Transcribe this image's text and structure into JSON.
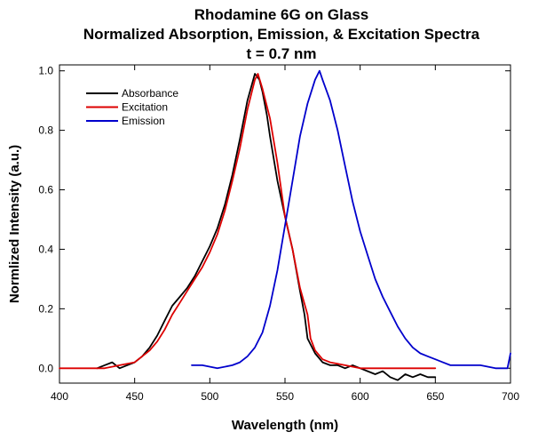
{
  "chart_data": {
    "type": "line",
    "title_lines": [
      "Rhodamine 6G on Glass",
      "Normalized Absorption, Emission, & Excitation Spectra",
      "t = 0.7 nm"
    ],
    "xlabel": "Wavelength (nm)",
    "ylabel": "Normlized Intensity (a.u.)",
    "xlim": [
      400,
      700
    ],
    "ylim": [
      -0.05,
      1.02
    ],
    "xticks": [
      400,
      450,
      500,
      550,
      600,
      650,
      700
    ],
    "yticks": [
      0.0,
      0.2,
      0.4,
      0.6,
      0.8,
      1.0
    ],
    "xtick_labels": [
      "400",
      "450",
      "500",
      "550",
      "600",
      "650",
      "700"
    ],
    "ytick_labels": [
      "0.0",
      "0.2",
      "0.4",
      "0.6",
      "0.8",
      "1.0"
    ],
    "grid": false,
    "legend_position": "top-left",
    "series": [
      {
        "name": "Absorbance",
        "color": "#000000",
        "points": [
          [
            425,
            0.0
          ],
          [
            430,
            0.01
          ],
          [
            435,
            0.02
          ],
          [
            440,
            0.0
          ],
          [
            445,
            0.01
          ],
          [
            450,
            0.02
          ],
          [
            455,
            0.04
          ],
          [
            460,
            0.07
          ],
          [
            465,
            0.11
          ],
          [
            470,
            0.16
          ],
          [
            475,
            0.21
          ],
          [
            480,
            0.24
          ],
          [
            485,
            0.27
          ],
          [
            490,
            0.31
          ],
          [
            495,
            0.36
          ],
          [
            500,
            0.41
          ],
          [
            505,
            0.47
          ],
          [
            510,
            0.55
          ],
          [
            515,
            0.65
          ],
          [
            520,
            0.77
          ],
          [
            525,
            0.9
          ],
          [
            530,
            0.99
          ],
          [
            533,
            0.97
          ],
          [
            535,
            0.93
          ],
          [
            538,
            0.85
          ],
          [
            540,
            0.78
          ],
          [
            545,
            0.63
          ],
          [
            550,
            0.51
          ],
          [
            555,
            0.4
          ],
          [
            560,
            0.26
          ],
          [
            563,
            0.18
          ],
          [
            565,
            0.1
          ],
          [
            570,
            0.05
          ],
          [
            575,
            0.02
          ],
          [
            580,
            0.01
          ],
          [
            585,
            0.01
          ],
          [
            590,
            0.0
          ],
          [
            595,
            0.01
          ],
          [
            600,
            0.0
          ],
          [
            605,
            -0.01
          ],
          [
            610,
            -0.02
          ],
          [
            615,
            -0.01
          ],
          [
            620,
            -0.03
          ],
          [
            625,
            -0.04
          ],
          [
            630,
            -0.02
          ],
          [
            635,
            -0.03
          ],
          [
            640,
            -0.02
          ],
          [
            645,
            -0.03
          ],
          [
            650,
            -0.03
          ]
        ]
      },
      {
        "name": "Excitation",
        "color": "#dd0000",
        "points": [
          [
            400,
            0.0
          ],
          [
            410,
            0.0
          ],
          [
            420,
            0.0
          ],
          [
            430,
            0.0
          ],
          [
            440,
            0.01
          ],
          [
            450,
            0.02
          ],
          [
            455,
            0.04
          ],
          [
            460,
            0.06
          ],
          [
            465,
            0.09
          ],
          [
            470,
            0.13
          ],
          [
            475,
            0.18
          ],
          [
            480,
            0.22
          ],
          [
            485,
            0.26
          ],
          [
            490,
            0.3
          ],
          [
            495,
            0.34
          ],
          [
            500,
            0.39
          ],
          [
            505,
            0.45
          ],
          [
            510,
            0.53
          ],
          [
            515,
            0.63
          ],
          [
            520,
            0.74
          ],
          [
            525,
            0.87
          ],
          [
            530,
            0.97
          ],
          [
            532,
            0.99
          ],
          [
            535,
            0.94
          ],
          [
            540,
            0.84
          ],
          [
            545,
            0.69
          ],
          [
            550,
            0.51
          ],
          [
            555,
            0.4
          ],
          [
            560,
            0.27
          ],
          [
            565,
            0.18
          ],
          [
            567,
            0.1
          ],
          [
            570,
            0.06
          ],
          [
            575,
            0.03
          ],
          [
            580,
            0.02
          ],
          [
            590,
            0.01
          ],
          [
            600,
            0.0
          ],
          [
            610,
            0.0
          ],
          [
            620,
            0.0
          ],
          [
            630,
            0.0
          ],
          [
            640,
            0.0
          ],
          [
            650,
            0.0
          ]
        ]
      },
      {
        "name": "Emission",
        "color": "#0000cc",
        "points": [
          [
            488,
            0.01
          ],
          [
            495,
            0.01
          ],
          [
            505,
            0.0
          ],
          [
            515,
            0.01
          ],
          [
            520,
            0.02
          ],
          [
            525,
            0.04
          ],
          [
            530,
            0.07
          ],
          [
            535,
            0.12
          ],
          [
            540,
            0.21
          ],
          [
            545,
            0.33
          ],
          [
            550,
            0.48
          ],
          [
            555,
            0.63
          ],
          [
            560,
            0.78
          ],
          [
            565,
            0.89
          ],
          [
            570,
            0.97
          ],
          [
            573,
            1.0
          ],
          [
            575,
            0.97
          ],
          [
            580,
            0.9
          ],
          [
            585,
            0.8
          ],
          [
            590,
            0.68
          ],
          [
            595,
            0.56
          ],
          [
            600,
            0.46
          ],
          [
            605,
            0.38
          ],
          [
            610,
            0.3
          ],
          [
            615,
            0.24
          ],
          [
            620,
            0.19
          ],
          [
            625,
            0.14
          ],
          [
            630,
            0.1
          ],
          [
            635,
            0.07
          ],
          [
            640,
            0.05
          ],
          [
            645,
            0.04
          ],
          [
            650,
            0.03
          ],
          [
            655,
            0.02
          ],
          [
            660,
            0.01
          ],
          [
            670,
            0.01
          ],
          [
            680,
            0.01
          ],
          [
            690,
            0.0
          ],
          [
            698,
            0.0
          ],
          [
            700,
            0.05
          ]
        ]
      }
    ]
  }
}
